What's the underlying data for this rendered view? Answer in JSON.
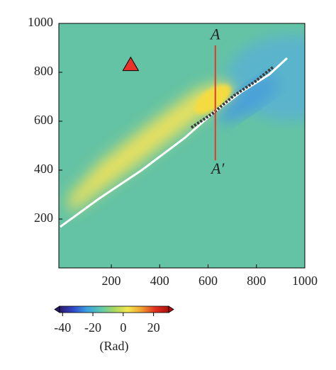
{
  "chart_data": {
    "type": "image",
    "xlim": [
      -17,
      1000
    ],
    "xticks": [
      200,
      400,
      600,
      800,
      1000
    ],
    "ylim": [
      0,
      1000
    ],
    "yticks": [
      200,
      400,
      600,
      800,
      1000
    ],
    "profile": {
      "x": [
        630,
        630
      ],
      "y": [
        910,
        440
      ],
      "color": "#e23a2a"
    },
    "marker": {
      "x": 280,
      "y": 830,
      "color": "#e8322a"
    },
    "annotations": [
      {
        "text": "A",
        "x": 630,
        "y": 950
      },
      {
        "text": "A′",
        "x": 640,
        "y": 400
      }
    ],
    "colorbar": {
      "lim": [
        -42,
        30
      ],
      "ticks": [
        -40,
        -20,
        0,
        20
      ],
      "label": "(Rad)",
      "colors": [
        "#2a1a6a",
        "#3048c8",
        "#3aa0e0",
        "#5cc8b0",
        "#a8d860",
        "#f4e850",
        "#f0a030",
        "#e03020",
        "#b01010"
      ]
    }
  }
}
